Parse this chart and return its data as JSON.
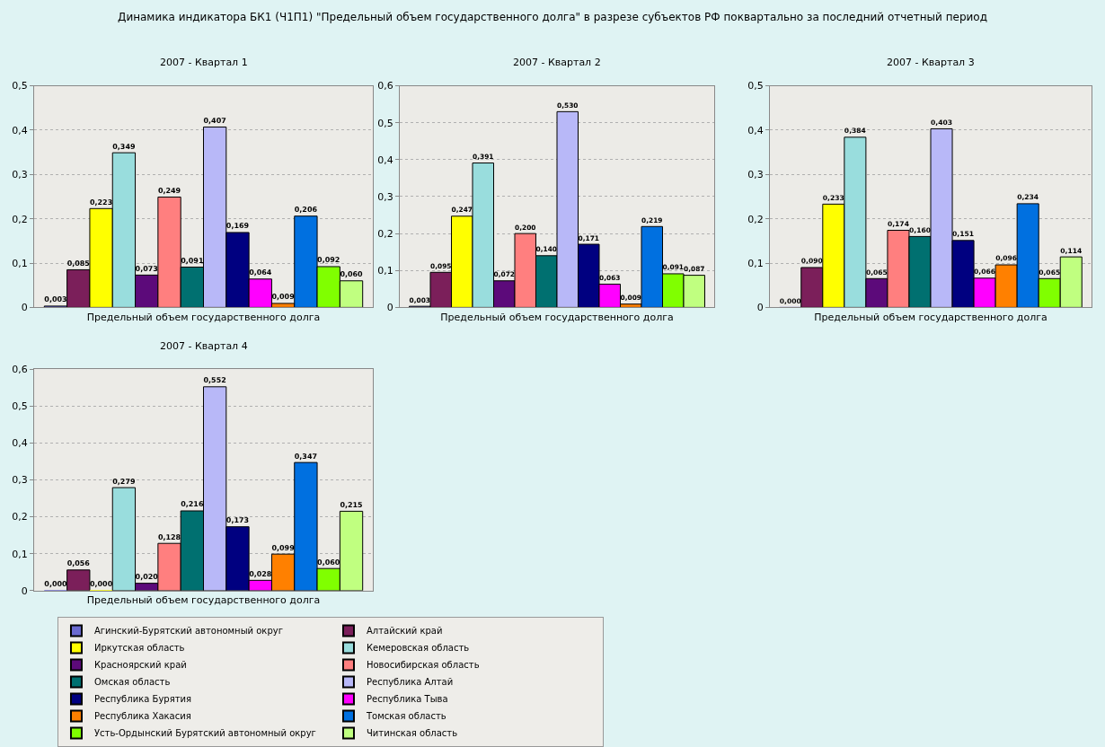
{
  "chart_data": [
    {
      "type": "bar",
      "title": "2007 - Квартал 1",
      "annotations": [
        "Динамика индикатора БК1 (Ч1П1) \"Предельный объем государственного долга\" в разрезе субъектов РФ поквартально за последний отчетный период"
      ],
      "categories": [
        "Предельный объем государственного долга"
      ],
      "ylim": [
        0,
        0.5
      ],
      "yticks": [
        0,
        {
          "value": 0.1,
          "label": "0,1"
        },
        {
          "value": 0.2,
          "label": "0,2"
        },
        {
          "value": 0.3,
          "label": "0,3"
        },
        {
          "value": 0.4,
          "label": "0,4"
        },
        {
          "value": 0.5,
          "label": "0,5"
        }
      ],
      "grid": "y",
      "legend": "bottom",
      "series": [
        {
          "name": "Агинский-Бурятский автономный округ",
          "color": "#6a6ad0",
          "values": [
            0.003
          ],
          "value_labels": [
            "0,003"
          ]
        },
        {
          "name": "Алтайский край",
          "color": "#7b1f5a",
          "values": [
            0.085
          ],
          "value_labels": [
            "0,085"
          ]
        },
        {
          "name": "Иркутская область",
          "color": "#ffff00",
          "values": [
            0.223
          ],
          "value_labels": [
            "0,223"
          ]
        },
        {
          "name": "Кемеровская область",
          "color": "#99dddd",
          "values": [
            0.349
          ],
          "value_labels": [
            "0,349"
          ]
        },
        {
          "name": "Красноярский край",
          "color": "#5c0a7a",
          "values": [
            0.073
          ],
          "value_labels": [
            "0,073"
          ]
        },
        {
          "name": "Новосибирская область",
          "color": "#ff7f7f",
          "values": [
            0.249
          ],
          "value_labels": [
            "0,249"
          ]
        },
        {
          "name": "Омская область",
          "color": "#007070",
          "values": [
            0.091
          ],
          "value_labels": [
            "0,091"
          ]
        },
        {
          "name": "Республика Алтай",
          "color": "#b8b8f8",
          "values": [
            0.407
          ],
          "value_labels": [
            "0,407"
          ]
        },
        {
          "name": "Республика Бурятия",
          "color": "#000080",
          "values": [
            0.169
          ],
          "value_labels": [
            "0,169"
          ]
        },
        {
          "name": "Республика Тыва",
          "color": "#ff00ff",
          "values": [
            0.064
          ],
          "value_labels": [
            "0,064"
          ]
        },
        {
          "name": "Республика Хакасия",
          "color": "#ff8000",
          "values": [
            0.009
          ],
          "value_labels": [
            "0,009"
          ]
        },
        {
          "name": "Томская область",
          "color": "#0070e0",
          "values": [
            0.206
          ],
          "value_labels": [
            "0,206"
          ]
        },
        {
          "name": "Усть-Ордынский Бурятский автономный округ",
          "color": "#80ff00",
          "values": [
            0.092
          ],
          "value_labels": [
            "0,092"
          ]
        },
        {
          "name": "Читинская область",
          "color": "#c0ff80",
          "values": [
            0.06
          ],
          "value_labels": [
            "0,060"
          ]
        }
      ]
    },
    {
      "type": "bar",
      "title": "2007 - Квартал 2",
      "categories": [
        "Предельный объем государственного долга"
      ],
      "ylim": [
        0,
        0.6
      ],
      "yticks": [
        0,
        {
          "value": 0.1,
          "label": "0,1"
        },
        {
          "value": 0.2,
          "label": "0,2"
        },
        {
          "value": 0.3,
          "label": "0,3"
        },
        {
          "value": 0.4,
          "label": "0,4"
        },
        {
          "value": 0.5,
          "label": "0,5"
        },
        {
          "value": 0.6,
          "label": "0,6"
        }
      ],
      "grid": "y",
      "series": [
        {
          "color": "#6a6ad0",
          "values": [
            0.003
          ],
          "value_labels": [
            "0,003"
          ]
        },
        {
          "color": "#7b1f5a",
          "values": [
            0.095
          ],
          "value_labels": [
            "0,095"
          ]
        },
        {
          "color": "#ffff00",
          "values": [
            0.247
          ],
          "value_labels": [
            "0,247"
          ]
        },
        {
          "color": "#99dddd",
          "values": [
            0.391
          ],
          "value_labels": [
            "0,391"
          ]
        },
        {
          "color": "#5c0a7a",
          "values": [
            0.072
          ],
          "value_labels": [
            "0,072"
          ]
        },
        {
          "color": "#ff7f7f",
          "values": [
            0.2
          ],
          "value_labels": [
            "0,200"
          ]
        },
        {
          "color": "#007070",
          "values": [
            0.14
          ],
          "value_labels": [
            "0,140"
          ]
        },
        {
          "color": "#b8b8f8",
          "values": [
            0.53
          ],
          "value_labels": [
            "0,530"
          ]
        },
        {
          "color": "#000080",
          "values": [
            0.171
          ],
          "value_labels": [
            "0,171"
          ]
        },
        {
          "color": "#ff00ff",
          "values": [
            0.063
          ],
          "value_labels": [
            "0,063"
          ]
        },
        {
          "color": "#ff8000",
          "values": [
            0.009
          ],
          "value_labels": [
            "0,009"
          ]
        },
        {
          "color": "#0070e0",
          "values": [
            0.219
          ],
          "value_labels": [
            "0,219"
          ]
        },
        {
          "color": "#80ff00",
          "values": [
            0.091
          ],
          "value_labels": [
            "0,091"
          ]
        },
        {
          "color": "#c0ff80",
          "values": [
            0.087
          ],
          "value_labels": [
            "0,087"
          ]
        }
      ]
    },
    {
      "type": "bar",
      "title": "2007 - Квартал 3",
      "categories": [
        "Предельный объем государственного долга"
      ],
      "ylim": [
        0,
        0.5
      ],
      "yticks": [
        0,
        {
          "value": 0.1,
          "label": "0,1"
        },
        {
          "value": 0.2,
          "label": "0,2"
        },
        {
          "value": 0.3,
          "label": "0,3"
        },
        {
          "value": 0.4,
          "label": "0,4"
        },
        {
          "value": 0.5,
          "label": "0,5"
        }
      ],
      "grid": "y",
      "series": [
        {
          "color": "#6a6ad0",
          "values": [
            0.0
          ],
          "value_labels": [
            "0,000"
          ]
        },
        {
          "color": "#7b1f5a",
          "values": [
            0.09
          ],
          "value_labels": [
            "0,090"
          ]
        },
        {
          "color": "#ffff00",
          "values": [
            0.233
          ],
          "value_labels": [
            "0,233"
          ]
        },
        {
          "color": "#99dddd",
          "values": [
            0.384
          ],
          "value_labels": [
            "0,384"
          ]
        },
        {
          "color": "#5c0a7a",
          "values": [
            0.065
          ],
          "value_labels": [
            "0,065"
          ]
        },
        {
          "color": "#ff7f7f",
          "values": [
            0.174
          ],
          "value_labels": [
            "0,174"
          ]
        },
        {
          "color": "#007070",
          "values": [
            0.16
          ],
          "value_labels": [
            "0,160"
          ]
        },
        {
          "color": "#b8b8f8",
          "values": [
            0.403
          ],
          "value_labels": [
            "0,403"
          ]
        },
        {
          "color": "#000080",
          "values": [
            0.151
          ],
          "value_labels": [
            "0,151"
          ]
        },
        {
          "color": "#ff00ff",
          "values": [
            0.066
          ],
          "value_labels": [
            "0,066"
          ]
        },
        {
          "color": "#ff8000",
          "values": [
            0.096
          ],
          "value_labels": [
            "0,096"
          ]
        },
        {
          "color": "#0070e0",
          "values": [
            0.234
          ],
          "value_labels": [
            "0,234"
          ]
        },
        {
          "color": "#80ff00",
          "values": [
            0.065
          ],
          "value_labels": [
            "0,065"
          ]
        },
        {
          "color": "#c0ff80",
          "values": [
            0.114
          ],
          "value_labels": [
            "0,114"
          ]
        }
      ]
    },
    {
      "type": "bar",
      "title": "2007 - Квартал 4",
      "categories": [
        "Предельный объем государственного долга"
      ],
      "ylim": [
        0,
        0.6
      ],
      "yticks": [
        0,
        {
          "value": 0.1,
          "label": "0,1"
        },
        {
          "value": 0.2,
          "label": "0,2"
        },
        {
          "value": 0.3,
          "label": "0,3"
        },
        {
          "value": 0.4,
          "label": "0,4"
        },
        {
          "value": 0.5,
          "label": "0,5"
        },
        {
          "value": 0.6,
          "label": "0,6"
        }
      ],
      "grid": "y",
      "series": [
        {
          "color": "#6a6ad0",
          "values": [
            0.0
          ],
          "value_labels": [
            "0,000"
          ]
        },
        {
          "color": "#7b1f5a",
          "values": [
            0.056
          ],
          "value_labels": [
            "0,056"
          ]
        },
        {
          "color": "#ffff00",
          "values": [
            0.0
          ],
          "value_labels": [
            "0,000"
          ]
        },
        {
          "color": "#99dddd",
          "values": [
            0.279
          ],
          "value_labels": [
            "0,279"
          ]
        },
        {
          "color": "#5c0a7a",
          "values": [
            0.02
          ],
          "value_labels": [
            "0,020"
          ]
        },
        {
          "color": "#ff7f7f",
          "values": [
            0.128
          ],
          "value_labels": [
            "0,128"
          ]
        },
        {
          "color": "#007070",
          "values": [
            0.216
          ],
          "value_labels": [
            "0,216"
          ]
        },
        {
          "color": "#b8b8f8",
          "values": [
            0.552
          ],
          "value_labels": [
            "0,552"
          ]
        },
        {
          "color": "#000080",
          "values": [
            0.173
          ],
          "value_labels": [
            "0,173"
          ]
        },
        {
          "color": "#ff00ff",
          "values": [
            0.028
          ],
          "value_labels": [
            "0,028"
          ]
        },
        {
          "color": "#ff8000",
          "values": [
            0.099
          ],
          "value_labels": [
            "0,099"
          ]
        },
        {
          "color": "#0070e0",
          "values": [
            0.347
          ],
          "value_labels": [
            "0,347"
          ]
        },
        {
          "color": "#80ff00",
          "values": [
            0.06
          ],
          "value_labels": [
            "0,060"
          ]
        },
        {
          "color": "#c0ff80",
          "values": [
            0.215
          ],
          "value_labels": [
            "0,215"
          ]
        }
      ]
    }
  ]
}
